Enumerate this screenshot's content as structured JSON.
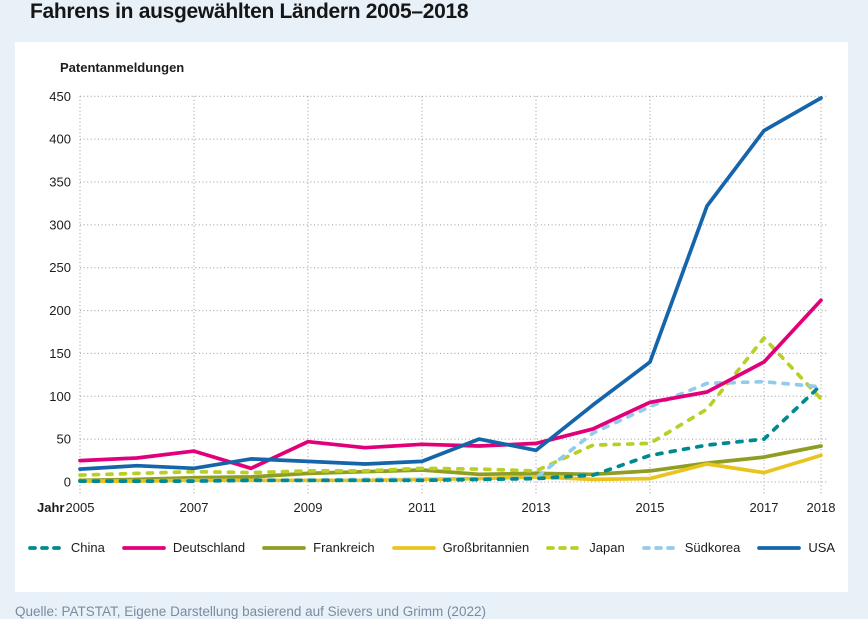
{
  "page": {
    "background_color": "#e8f1f8",
    "panel_color": "#ffffff"
  },
  "header": {
    "title": "Fahrens in ausgewählten Ländern 2005–2018"
  },
  "chart_data": {
    "type": "line",
    "title": "Fahrens in ausgewählten Ländern 2005–2018",
    "ylabel": "Patentanmeldungen",
    "xlabel": "Jahr",
    "x": [
      2005,
      2006,
      2007,
      2008,
      2009,
      2010,
      2011,
      2012,
      2013,
      2014,
      2015,
      2016,
      2017,
      2018
    ],
    "x_tick_labels": [
      "2005",
      "2007",
      "2009",
      "2011",
      "2013",
      "2015",
      "2017",
      "2018"
    ],
    "y_ticks": [
      0,
      50,
      100,
      150,
      200,
      250,
      300,
      350,
      400,
      450
    ],
    "ylim": [
      0,
      450
    ],
    "grid": true,
    "grid_style": "dotted",
    "grid_color": "#999999",
    "legend_position": "bottom",
    "series": [
      {
        "name": "China",
        "color": "#00898f",
        "style": "dashed",
        "values": [
          1,
          1,
          1,
          2,
          2,
          2,
          2,
          3,
          4,
          8,
          31,
          43,
          50,
          113
        ]
      },
      {
        "name": "Deutschland",
        "color": "#e2007a",
        "style": "solid",
        "values": [
          25,
          28,
          36,
          16,
          47,
          40,
          44,
          42,
          45,
          62,
          93,
          105,
          140,
          212
        ]
      },
      {
        "name": "Frankreich",
        "color": "#8f9e22",
        "style": "solid",
        "values": [
          2,
          3,
          5,
          6,
          10,
          12,
          14,
          9,
          10,
          9,
          13,
          22,
          29,
          42
        ]
      },
      {
        "name": "Großbritannien",
        "color": "#e9c41f",
        "style": "solid",
        "values": [
          1,
          1,
          2,
          2,
          2,
          2,
          3,
          4,
          6,
          3,
          4,
          21,
          11,
          31
        ]
      },
      {
        "name": "Japan",
        "color": "#b9cf26",
        "style": "dashed",
        "values": [
          8,
          10,
          12,
          11,
          13,
          13,
          16,
          15,
          13,
          43,
          45,
          85,
          168,
          97
        ]
      },
      {
        "name": "Südkorea",
        "color": "#93cbeb",
        "style": "dashed",
        "values": [
          1,
          1,
          2,
          2,
          2,
          3,
          3,
          3,
          5,
          57,
          88,
          115,
          117,
          111
        ]
      },
      {
        "name": "USA",
        "color": "#1565ab",
        "style": "solid",
        "values": [
          15,
          19,
          16,
          27,
          24,
          21,
          24,
          50,
          37,
          90,
          140,
          322,
          410,
          448
        ]
      }
    ],
    "text_color": "#1d1d1b"
  },
  "footer": {
    "source": "Quelle: PATSTAT, Eigene Darstellung basierend auf Sievers und Grimm (2022)"
  }
}
